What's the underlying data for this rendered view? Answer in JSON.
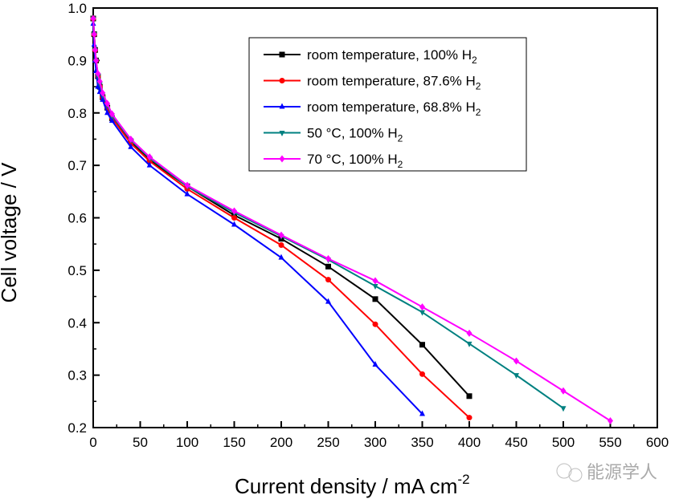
{
  "chart_data": {
    "type": "line",
    "xlabel": "Current density / mA cm",
    "xlabel_sup": "-2",
    "ylabel": "Cell voltage / V",
    "xlim": [
      0,
      600
    ],
    "ylim": [
      0.2,
      1.0
    ],
    "xticks": [
      "0",
      "50",
      "100",
      "150",
      "200",
      "250",
      "300",
      "350",
      "400",
      "450",
      "500",
      "550",
      "600"
    ],
    "yticks": [
      "0.2",
      "0.3",
      "0.4",
      "0.5",
      "0.6",
      "0.7",
      "0.8",
      "0.9",
      "1.0"
    ],
    "legend_position": "top-center",
    "series": [
      {
        "name": "room temperature, 100% H",
        "sub": "2",
        "color": "#000000",
        "marker": "square",
        "x": [
          0,
          1,
          2,
          3,
          5,
          7,
          10,
          15,
          20,
          40,
          60,
          100,
          150,
          200,
          250,
          300,
          350,
          400
        ],
        "y": [
          0.98,
          0.95,
          0.92,
          0.9,
          0.87,
          0.85,
          0.83,
          0.81,
          0.79,
          0.745,
          0.71,
          0.66,
          0.605,
          0.56,
          0.507,
          0.445,
          0.358,
          0.26
        ]
      },
      {
        "name": "room temperature, 87.6% H",
        "sub": "2",
        "color": "#ff0000",
        "marker": "circle",
        "x": [
          0,
          1,
          2,
          3,
          5,
          7,
          10,
          15,
          20,
          40,
          60,
          100,
          150,
          200,
          250,
          300,
          350,
          400
        ],
        "y": [
          0.98,
          0.95,
          0.92,
          0.9,
          0.87,
          0.85,
          0.83,
          0.81,
          0.79,
          0.742,
          0.708,
          0.655,
          0.6,
          0.548,
          0.482,
          0.397,
          0.302,
          0.219
        ]
      },
      {
        "name": "room temperature, 68.8% H",
        "sub": "2",
        "color": "#0000ff",
        "marker": "triangle-up",
        "x": [
          0,
          1,
          2,
          3,
          5,
          7,
          10,
          15,
          20,
          40,
          60,
          100,
          150,
          200,
          250,
          300,
          350
        ],
        "y": [
          0.97,
          0.93,
          0.9,
          0.88,
          0.85,
          0.84,
          0.825,
          0.8,
          0.785,
          0.735,
          0.7,
          0.645,
          0.587,
          0.524,
          0.44,
          0.32,
          0.226
        ]
      },
      {
        "name": "50 °C, 100% H",
        "sub": "2",
        "color": "#008080",
        "marker": "triangle-down",
        "x": [
          0,
          1,
          2,
          3,
          5,
          7,
          10,
          15,
          20,
          40,
          60,
          100,
          150,
          200,
          250,
          300,
          350,
          400,
          450,
          500
        ],
        "y": [
          0.98,
          0.95,
          0.92,
          0.9,
          0.87,
          0.855,
          0.835,
          0.815,
          0.795,
          0.748,
          0.714,
          0.66,
          0.61,
          0.565,
          0.52,
          0.47,
          0.42,
          0.36,
          0.3,
          0.237
        ]
      },
      {
        "name": "70 °C, 100% H",
        "sub": "2",
        "color": "#ff00ff",
        "marker": "diamond",
        "x": [
          0,
          1,
          2,
          3,
          5,
          7,
          10,
          15,
          20,
          40,
          60,
          100,
          150,
          200,
          250,
          300,
          350,
          400,
          450,
          500,
          550
        ],
        "y": [
          0.98,
          0.95,
          0.92,
          0.9,
          0.875,
          0.86,
          0.838,
          0.818,
          0.798,
          0.75,
          0.716,
          0.662,
          0.613,
          0.567,
          0.522,
          0.48,
          0.43,
          0.38,
          0.327,
          0.27,
          0.213
        ]
      }
    ]
  },
  "watermark": "能源学人"
}
